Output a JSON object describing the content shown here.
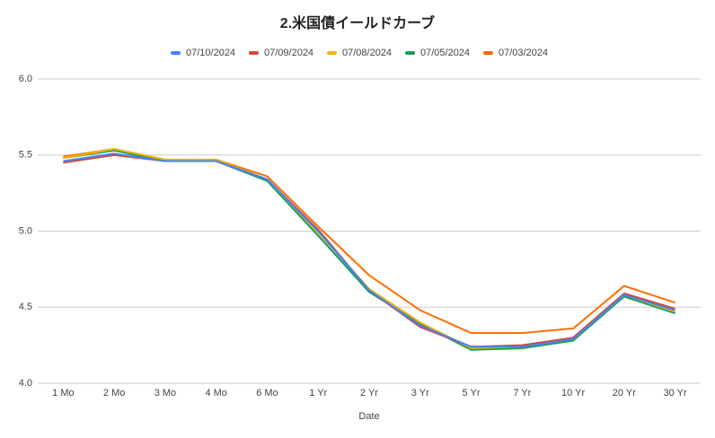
{
  "chart_data": {
    "type": "line",
    "title": "2.米国債イールドカーブ",
    "x_label": "Date",
    "categories": [
      "1 Mo",
      "2 Mo",
      "3 Mo",
      "4 Mo",
      "6 Mo",
      "1 Yr",
      "2 Yr",
      "3 Yr",
      "5 Yr",
      "7 Yr",
      "10 Yr",
      "20 Yr",
      "30 Yr"
    ],
    "series": [
      {
        "name": "07/10/2024",
        "color": "#4285f4",
        "values": [
          5.46,
          5.51,
          5.46,
          5.46,
          5.34,
          5.0,
          4.61,
          4.38,
          4.24,
          4.24,
          4.29,
          4.58,
          4.48
        ]
      },
      {
        "name": "07/09/2024",
        "color": "#db4437",
        "values": [
          5.45,
          5.5,
          5.46,
          5.46,
          5.34,
          5.01,
          4.61,
          4.37,
          4.24,
          4.25,
          4.3,
          4.59,
          4.49
        ]
      },
      {
        "name": "07/08/2024",
        "color": "#f4b400",
        "values": [
          5.48,
          5.54,
          5.47,
          5.47,
          5.34,
          4.99,
          4.62,
          4.4,
          4.23,
          4.24,
          4.29,
          4.58,
          4.47
        ]
      },
      {
        "name": "07/05/2024",
        "color": "#0f9d58",
        "values": [
          5.48,
          5.53,
          5.46,
          5.46,
          5.33,
          4.97,
          4.6,
          4.39,
          4.22,
          4.23,
          4.28,
          4.57,
          4.46
        ]
      },
      {
        "name": "07/03/2024",
        "color": "#ff6d01",
        "values": [
          5.49,
          5.54,
          5.47,
          5.47,
          5.36,
          5.03,
          4.71,
          4.48,
          4.33,
          4.33,
          4.36,
          4.64,
          4.53
        ]
      }
    ],
    "ylim": [
      4,
      6
    ],
    "yticks": [
      {
        "value": 4,
        "label": "4.0"
      },
      4.5,
      {
        "value": 5,
        "label": "5.0"
      },
      5.5,
      {
        "value": 6,
        "label": "6.0"
      }
    ],
    "grid": true,
    "legend": "top"
  }
}
